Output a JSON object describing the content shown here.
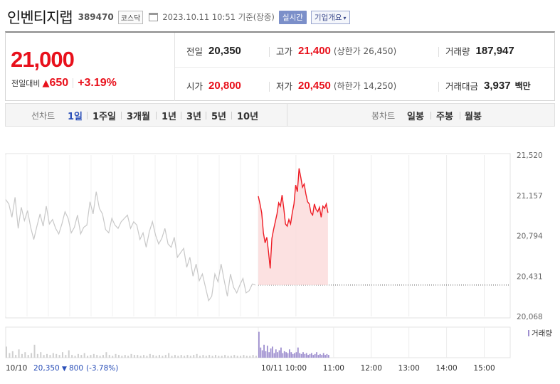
{
  "header": {
    "stock_name": "인벤티지랩",
    "stock_code": "389470",
    "market_badge": "코스닥",
    "datetime": "2023.10.11 10:51 기준(장중)",
    "live_button": "실시간",
    "company_button": "기업개요",
    "company_caret": "▾"
  },
  "price": {
    "current": "21,000",
    "change_label": "전일대비",
    "change_arrow": "▲",
    "change": "650",
    "change_pct": "+3.19%"
  },
  "stats": {
    "prev_close_label": "전일",
    "prev_close": "20,350",
    "high_label": "고가",
    "high": "21,400",
    "upper_limit": "(상한가 26,450)",
    "volume_label": "거래량",
    "volume": "187,947",
    "open_label": "시가",
    "open": "20,800",
    "low_label": "저가",
    "low": "20,450",
    "lower_limit": "(하한가 14,250)",
    "trade_value_label": "거래대금",
    "trade_value": "3,937",
    "trade_value_unit": "백만"
  },
  "period_bar": {
    "line_label": "선차트",
    "line_items": [
      "1일",
      "1주일",
      "3개월",
      "1년",
      "3년",
      "5년",
      "10년"
    ],
    "active_index": 0,
    "candle_label": "봉차트",
    "candle_items": [
      "일봉",
      "주봉",
      "월봉"
    ]
  },
  "colors": {
    "up": "#e8101b",
    "down": "#2a4fb8",
    "prev_day_line": "#c8c8c8",
    "today_line": "#ee1c25",
    "today_fill": "#fbdcdc",
    "prev_volume": "#cfcfcf",
    "today_volume": "#9e8fcf"
  },
  "chart_data": {
    "type": "line",
    "y_ticks": [
      "21,520",
      "21,157",
      "20,794",
      "20,431",
      "20,068"
    ],
    "ylim": [
      20068,
      21520
    ],
    "x_ticks": [
      "10/10",
      "10/11",
      "10:00",
      "11:00",
      "12:00",
      "13:00",
      "14:00",
      "15:00"
    ],
    "volume_legend": "거래량",
    "footer_date": "10/10",
    "footer_close": "20,350",
    "footer_arrow": "▼",
    "footer_change": "800",
    "footer_pct": "(-3.78%)",
    "reference_line": 20350,
    "series": [
      {
        "name": "10/10",
        "values": [
          21120,
          21080,
          20960,
          21140,
          20860,
          21050,
          20930,
          21020,
          20870,
          20760,
          20880,
          20990,
          20880,
          21060,
          20900,
          20940,
          20860,
          20810,
          20900,
          21010,
          20950,
          20820,
          20870,
          20980,
          20810,
          20870,
          20890,
          21100,
          20990,
          21190,
          21040,
          20990,
          20850,
          20820,
          20950,
          20890,
          20860,
          20920,
          20950,
          20980,
          20860,
          20920,
          20890,
          20760,
          20820,
          20690,
          20830,
          20920,
          20800,
          20720,
          20770,
          20860,
          20720,
          20690,
          20780,
          20600,
          20640,
          20680,
          20510,
          20600,
          20430,
          20540,
          20390,
          20450,
          20330,
          20210,
          20250,
          20450,
          20380,
          20540,
          20390,
          20250,
          20450,
          20330,
          20280,
          20350,
          20410,
          20280,
          20300,
          20360,
          20350
        ]
      },
      {
        "name": "10/11",
        "values": [
          21150,
          21080,
          21000,
          20820,
          20730,
          20780,
          20650,
          20500,
          20770,
          20850,
          20920,
          20990,
          21090,
          21060,
          21160,
          21040,
          20900,
          20880,
          20940,
          20900,
          21000,
          21080,
          21250,
          21190,
          21400,
          21320,
          21230,
          21260,
          21170,
          21100,
          21080,
          21000,
          20980,
          21080,
          21030,
          21010,
          21050,
          20960,
          21060,
          21040,
          21080,
          21000
        ]
      }
    ],
    "volume": {
      "prev_day": [
        12,
        5,
        7,
        3,
        9,
        4,
        6,
        3,
        5,
        14,
        4,
        6,
        3,
        4,
        3,
        5,
        4,
        3,
        6,
        3,
        8,
        3,
        2,
        4,
        3,
        5,
        2,
        3,
        4,
        3,
        2,
        3,
        6,
        3,
        2,
        4,
        3,
        2,
        3,
        2,
        4,
        3,
        3,
        2,
        3,
        2,
        4,
        3,
        2,
        3,
        2,
        3,
        5,
        2,
        3,
        2,
        3,
        2,
        3,
        2,
        3,
        4,
        2,
        3,
        2,
        3,
        2,
        3,
        2,
        2,
        3,
        2,
        2,
        3,
        2,
        2,
        3,
        2,
        2,
        3,
        2
      ],
      "today": [
        28,
        11,
        8,
        14,
        7,
        13,
        6,
        10,
        12,
        5,
        9,
        6,
        8,
        11,
        5,
        7,
        6,
        5,
        9,
        6,
        4,
        5,
        6,
        11,
        5,
        4,
        6,
        4,
        5,
        3,
        4,
        5,
        3,
        4,
        6,
        3,
        4,
        3,
        5,
        3,
        4,
        3
      ]
    }
  }
}
